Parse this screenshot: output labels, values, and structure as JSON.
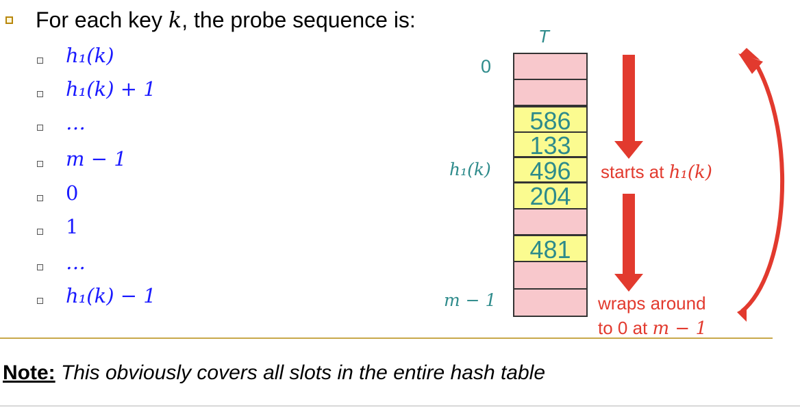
{
  "heading": "For each key k, the probe sequence is:",
  "heading_parts": {
    "pre": "For each key ",
    "var": "k",
    "post": ", the probe sequence is:"
  },
  "sequence": [
    {
      "text": "h₁(k)"
    },
    {
      "text": "h₁(k) + 1"
    },
    {
      "text": "…"
    },
    {
      "text": "m − 1"
    },
    {
      "text": "0"
    },
    {
      "text": "1"
    },
    {
      "text": "…"
    },
    {
      "text": "h₁(k) − 1"
    }
  ],
  "table": {
    "label": "T",
    "row_zero_label": "0",
    "row_h_label": "h₁(k)",
    "row_last_label": "m − 1",
    "cells": [
      {
        "kind": "empty",
        "value": ""
      },
      {
        "kind": "empty",
        "value": ""
      },
      {
        "kind": "key",
        "value": "586"
      },
      {
        "kind": "key",
        "value": "133"
      },
      {
        "kind": "key",
        "value": "496"
      },
      {
        "kind": "key",
        "value": "204"
      },
      {
        "kind": "empty",
        "value": ""
      },
      {
        "kind": "key",
        "value": "481"
      },
      {
        "kind": "empty",
        "value": ""
      },
      {
        "kind": "empty",
        "value": ""
      }
    ]
  },
  "annotations": {
    "starts": "starts at h₁(k)",
    "starts_pre": "starts at ",
    "starts_var": "h₁(k)",
    "wraps_line1": "wraps around",
    "wraps_line2_pre": "to 0 at ",
    "wraps_line2_var": "m − 1"
  },
  "note": {
    "label": "Note:",
    "text": " This obviously covers all slots in the entire hash table"
  },
  "colors": {
    "empty_cell": "#f8c8cc",
    "key_cell": "#fbfb90",
    "teal": "#2e8b8b",
    "arrow_red": "#e23a2e",
    "sequence_blue": "#1a1aff"
  }
}
